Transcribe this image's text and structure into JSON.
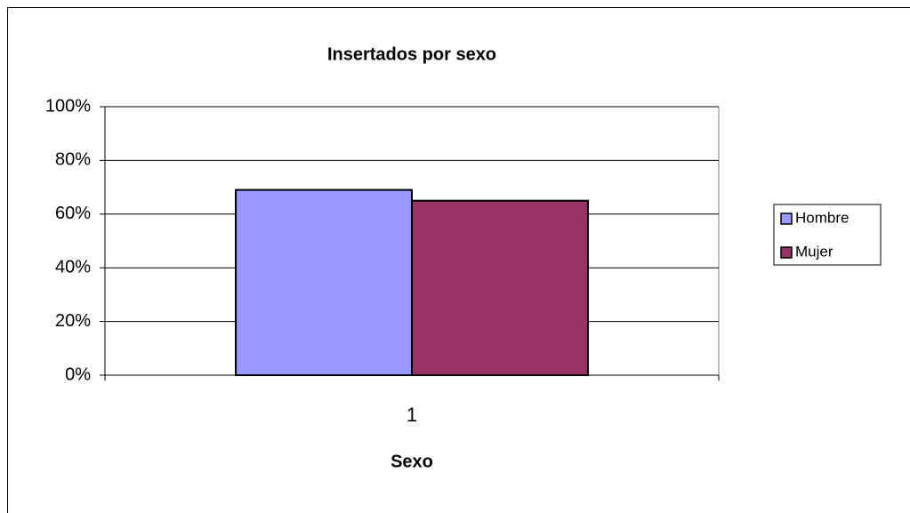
{
  "chart_data": {
    "type": "bar",
    "title": "Insertados por sexo",
    "x_label": "Sexo",
    "categories": [
      "1"
    ],
    "series": [
      {
        "name": "Hombre",
        "color": "#9999ff",
        "values": [
          69
        ]
      },
      {
        "name": "Mujer",
        "color": "#993366",
        "values": [
          65
        ]
      }
    ],
    "ylim": [
      0,
      100
    ],
    "yticks": [
      {
        "value": 0,
        "label": "0%"
      },
      {
        "value": 20,
        "label": "20%"
      },
      {
        "value": 40,
        "label": "40%"
      },
      {
        "value": 60,
        "label": "60%"
      },
      {
        "value": 80,
        "label": "80%"
      },
      {
        "value": 100,
        "label": "100%"
      }
    ],
    "grid": true,
    "legend": "right"
  }
}
